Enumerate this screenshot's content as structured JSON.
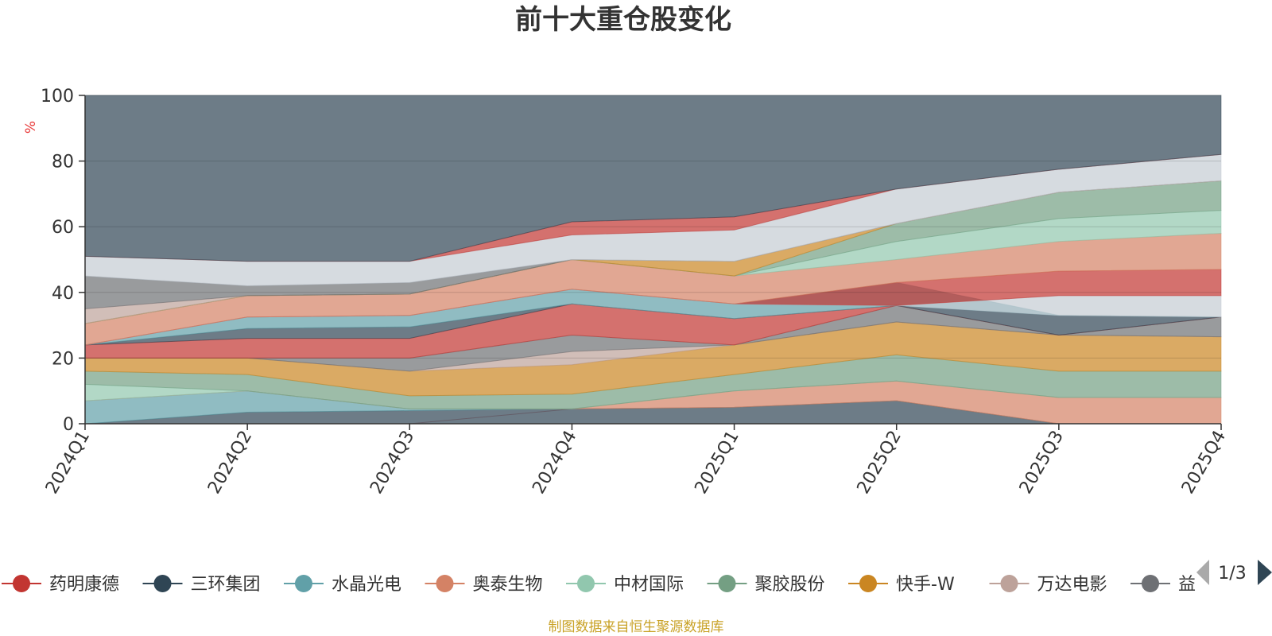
{
  "chart_data": {
    "type": "area",
    "title": "前十大重仓股变化",
    "ylabel": "%",
    "xlabel": "",
    "ylim": [
      0,
      100
    ],
    "yticks": [
      0,
      20,
      40,
      60,
      80,
      100
    ],
    "categories": [
      "2024Q1",
      "2024Q2",
      "2024Q3",
      "2024Q4",
      "2025Q1",
      "2025Q2",
      "2025Q3",
      "2025Q4"
    ],
    "grid": true,
    "footer": "制图数据来自恒生聚源数据库",
    "legend": {
      "position": "bottom",
      "page_indicator": "1/3",
      "items": [
        {
          "name": "药明康德",
          "color": "#c23531"
        },
        {
          "name": "三环集团",
          "color": "#2f4554"
        },
        {
          "name": "水晶光电",
          "color": "#61a0a8"
        },
        {
          "name": "奥泰生物",
          "color": "#d48265"
        },
        {
          "name": "中材国际",
          "color": "#91c7ae"
        },
        {
          "name": "聚胶股份",
          "color": "#749f83"
        },
        {
          "name": "快手-W",
          "color": "#ca8622"
        },
        {
          "name": "万达电影",
          "color": "#bda29a"
        },
        {
          "name": "益",
          "color": "#6e7074"
        }
      ]
    },
    "bands": [
      {
        "color": "#c23531",
        "lower": [
          0,
          0,
          0,
          4.5,
          5,
          7,
          0,
          0
        ],
        "upper": [
          0,
          0,
          0,
          4.5,
          5,
          7,
          0,
          0
        ]
      },
      {
        "color": "#2f4554",
        "lower": [
          0,
          0,
          0,
          0,
          0,
          0,
          0,
          0
        ],
        "upper": [
          0,
          3.5,
          4,
          4.5,
          5,
          7,
          0,
          0
        ]
      },
      {
        "color": "#61a0a8",
        "lower": [
          0,
          3.5,
          4,
          4.5,
          5,
          7,
          0,
          0
        ],
        "upper": [
          7,
          10,
          4.5,
          4.5,
          5,
          7,
          0,
          0
        ]
      },
      {
        "color": "#d48265",
        "lower": [
          7,
          10,
          4.5,
          4.5,
          5,
          7,
          0,
          0
        ],
        "upper": [
          7,
          10,
          4.5,
          4.5,
          10,
          13,
          8,
          8
        ]
      },
      {
        "color": "#91c7ae",
        "lower": [
          7,
          10,
          4.5,
          4.5,
          10,
          13,
          8,
          8
        ],
        "upper": [
          12,
          10,
          4.5,
          4.5,
          10,
          13,
          8,
          8
        ]
      },
      {
        "color": "#749f83",
        "lower": [
          12,
          10,
          4.5,
          4.5,
          10,
          13,
          8,
          8
        ],
        "upper": [
          16,
          15,
          8.5,
          9,
          15,
          21,
          16,
          16
        ]
      },
      {
        "color": "#ca8622",
        "lower": [
          16,
          15,
          8.5,
          9,
          15,
          21,
          16,
          16
        ],
        "upper": [
          20,
          20,
          16,
          18,
          24,
          31,
          27,
          26.5
        ]
      },
      {
        "color": "#bda29a",
        "lower": [
          20,
          20,
          16,
          18,
          24,
          31,
          27,
          26.5
        ],
        "upper": [
          20,
          20,
          16,
          22,
          24,
          31,
          27,
          26.5
        ]
      },
      {
        "color": "#6e7074",
        "lower": [
          20,
          20,
          16,
          22,
          24,
          31,
          27,
          26.5
        ],
        "upper": [
          20,
          20,
          20,
          27,
          24,
          36,
          27,
          32.5
        ]
      },
      {
        "color": "#c23531",
        "lower": [
          20,
          20,
          20,
          27,
          24,
          36,
          27,
          32.5
        ],
        "upper": [
          24,
          26,
          26,
          36.5,
          32,
          36,
          27,
          32.5
        ]
      },
      {
        "color": "#2f4554",
        "lower": [
          24,
          26,
          26,
          36.5,
          32,
          36,
          27,
          32.5
        ],
        "upper": [
          24,
          29,
          29.5,
          36.5,
          32,
          36,
          33,
          32.5
        ]
      },
      {
        "color": "#61a0a8",
        "lower": [
          24,
          29,
          29.5,
          36.5,
          32,
          36,
          33,
          32.5
        ],
        "upper": [
          24,
          32.5,
          33,
          41,
          36.5,
          43,
          33,
          32.5
        ]
      },
      {
        "color": "#c4ccd3",
        "lower": [
          24,
          32.5,
          33,
          41,
          36.5,
          36,
          33,
          32.5
        ],
        "upper": [
          24,
          32.5,
          33,
          41,
          36.5,
          36,
          39,
          39
        ]
      },
      {
        "color": "#c23531",
        "lower": [
          24,
          32.5,
          33,
          41,
          36.5,
          36,
          39,
          39
        ],
        "upper": [
          24,
          32.5,
          33,
          41,
          36.5,
          43,
          46.5,
          47
        ]
      },
      {
        "color": "#d48265",
        "lower": [
          24,
          32.5,
          33,
          41,
          36.5,
          43,
          46.5,
          47
        ],
        "upper": [
          30.5,
          39,
          39.5,
          50,
          45,
          50,
          55.5,
          58
        ]
      },
      {
        "color": "#91c7ae",
        "lower": [
          30.5,
          39,
          39.5,
          50,
          45,
          50,
          55.5,
          58
        ],
        "upper": [
          30.5,
          39,
          39.5,
          50,
          45,
          55.5,
          62.5,
          65
        ]
      },
      {
        "color": "#749f83",
        "lower": [
          30.5,
          39,
          39.5,
          50,
          45,
          55.5,
          62.5,
          65
        ],
        "upper": [
          30.5,
          39,
          39.5,
          50,
          45,
          61,
          70.5,
          74
        ]
      },
      {
        "color": "#ca8622",
        "lower": [
          30.5,
          39,
          39.5,
          50,
          45,
          61,
          70.5,
          74
        ],
        "upper": [
          30.5,
          39,
          39.5,
          50,
          49.5,
          61,
          70.5,
          74
        ]
      },
      {
        "color": "#bda29a",
        "lower": [
          30.5,
          39,
          39.5,
          50,
          49.5,
          61,
          70.5,
          74
        ],
        "upper": [
          35,
          39,
          39.5,
          50,
          49.5,
          61,
          70.5,
          74
        ]
      },
      {
        "color": "#6e7074",
        "lower": [
          35,
          39,
          39.5,
          50,
          49.5,
          61,
          70.5,
          74
        ],
        "upper": [
          45,
          42,
          43,
          50,
          49.5,
          61,
          70.5,
          74
        ]
      },
      {
        "color": "#c4ccd3",
        "lower": [
          45,
          42,
          43,
          50,
          49.5,
          61,
          70.5,
          74
        ],
        "upper": [
          51,
          49.5,
          49.5,
          57.5,
          59,
          71.5,
          77.5,
          82
        ]
      },
      {
        "color": "#c23531",
        "lower": [
          51,
          49.5,
          49.5,
          57.5,
          59,
          71.5,
          77.5,
          82
        ],
        "upper": [
          51,
          49.5,
          49.5,
          61.5,
          63,
          71.5,
          77.5,
          82
        ]
      },
      {
        "color": "#2f4554",
        "lower": [
          51,
          49.5,
          49.5,
          61.5,
          63,
          71.5,
          77.5,
          82
        ],
        "upper": [
          100,
          100,
          100,
          100,
          100,
          100,
          100,
          100
        ]
      }
    ]
  }
}
